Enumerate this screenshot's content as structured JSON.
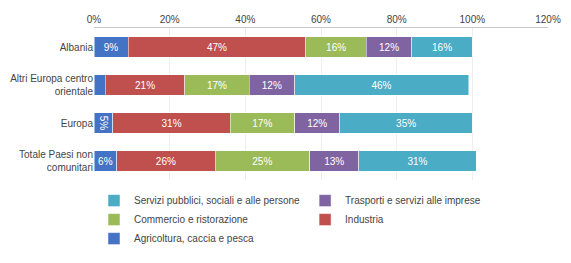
{
  "chart_data": {
    "type": "bar",
    "orientation": "horizontal",
    "stacked": true,
    "data_labels": true,
    "grid": true,
    "legend": "bottom",
    "categories": [
      "Albania",
      "Altri Europa centro\norientale",
      "Europa",
      "Totale Paesi non\ncomunitari"
    ],
    "series": [
      {
        "name": "Agricoltura, caccia e pesca",
        "color": "#4472C4",
        "values": [
          9,
          3,
          5,
          6
        ],
        "value_labels": [
          "9%",
          null,
          "5%",
          "6%"
        ]
      },
      {
        "name": "Industria",
        "color": "#C0504D",
        "values": [
          47,
          21,
          31,
          26
        ],
        "value_labels": [
          "47%",
          "21%",
          "31%",
          "26%"
        ]
      },
      {
        "name": "Commercio e ristorazione",
        "color": "#9BBB59",
        "values": [
          16,
          17,
          17,
          25
        ],
        "value_labels": [
          "16%",
          "17%",
          "17%",
          "25%"
        ]
      },
      {
        "name": "Trasporti e servizi alle imprese",
        "color": "#8064A2",
        "values": [
          12,
          12,
          12,
          13
        ],
        "value_labels": [
          "12%",
          "12%",
          "12%",
          "13%"
        ]
      },
      {
        "name": "Servizi pubblici, sociali e alle persone",
        "color": "#4BACC6",
        "values": [
          16,
          46,
          35,
          31
        ],
        "value_labels": [
          "16%",
          "46%",
          "35%",
          "31%"
        ]
      }
    ],
    "xlim": [
      0,
      120
    ],
    "xticks": [
      {
        "value": 0,
        "label": "0%"
      },
      {
        "value": 20,
        "label": "20%"
      },
      {
        "value": 40,
        "label": "40%"
      },
      {
        "value": 60,
        "label": "60%"
      },
      {
        "value": 80,
        "label": "80%"
      },
      {
        "value": 100,
        "label": "100%"
      },
      {
        "value": 120,
        "label": "120%"
      }
    ]
  }
}
